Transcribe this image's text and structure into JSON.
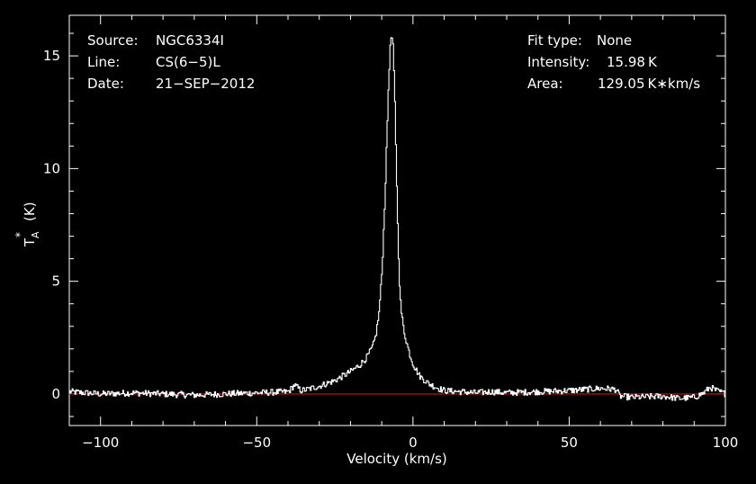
{
  "chart_data": {
    "type": "line",
    "xlabel": "Velocity (km/s)",
    "ylabel_main": "T",
    "ylabel_sub": "A",
    "ylabel_sup": "*",
    "ylabel_unit": "(K)",
    "xlim": [
      -110,
      100
    ],
    "ylim": [
      -1.4,
      16.8
    ],
    "x_major_ticks": [
      -100,
      -50,
      0,
      50,
      100
    ],
    "x_tick_labels": [
      "−100",
      "−50",
      "0",
      "50",
      "100"
    ],
    "y_major_ticks": [
      0,
      5,
      10,
      15
    ],
    "y_tick_labels": [
      "0",
      "5",
      "10",
      "15"
    ],
    "baseline_color": "#d01010",
    "line_color": "#ffffff",
    "background": "#000000",
    "series": [
      {
        "x": [
          -110,
          -100,
          -90,
          -80,
          -70,
          -60,
          -50,
          -40,
          -38,
          -36,
          -34,
          -30,
          -25,
          -20,
          -17,
          -15,
          -13,
          -12,
          -11,
          -10,
          -9,
          -8,
          -7.5,
          -7,
          -6.5,
          -6,
          -5.5,
          -5,
          -4.5,
          -4,
          -3,
          -2,
          -1,
          0,
          2,
          5,
          8,
          10,
          15,
          20,
          25,
          30,
          40,
          50,
          55,
          60,
          65,
          66,
          70,
          80,
          85,
          90,
          93,
          95,
          97,
          100
        ],
        "y": [
          0.1,
          0.0,
          0.05,
          0.0,
          -0.05,
          0.0,
          0.05,
          0.1,
          0.4,
          0.15,
          0.2,
          0.35,
          0.6,
          1.0,
          1.3,
          1.6,
          2.1,
          2.6,
          3.6,
          5.5,
          9.0,
          13.5,
          15.2,
          15.98,
          15.4,
          13.5,
          10.5,
          7.5,
          5.2,
          3.8,
          2.8,
          2.2,
          1.7,
          1.3,
          0.8,
          0.45,
          0.25,
          0.15,
          0.1,
          0.05,
          0.1,
          0.05,
          0.1,
          0.15,
          0.2,
          0.25,
          0.2,
          -0.1,
          -0.15,
          -0.1,
          -0.2,
          -0.15,
          0.05,
          0.3,
          0.15,
          0.0
        ]
      }
    ]
  },
  "header_left": {
    "source_label": "Source:",
    "source_value": "NGC6334I",
    "line_label": "Line:",
    "line_value": "CS(6−5)L",
    "date_label": "Date:",
    "date_value": "21−SEP−2012"
  },
  "header_right": {
    "fit_label": "Fit type:",
    "fit_value": "None",
    "intensity_label": "Intensity:",
    "intensity_value": "15.98 K",
    "area_label": "Area:",
    "area_value": "129.05 K∗km/s"
  }
}
